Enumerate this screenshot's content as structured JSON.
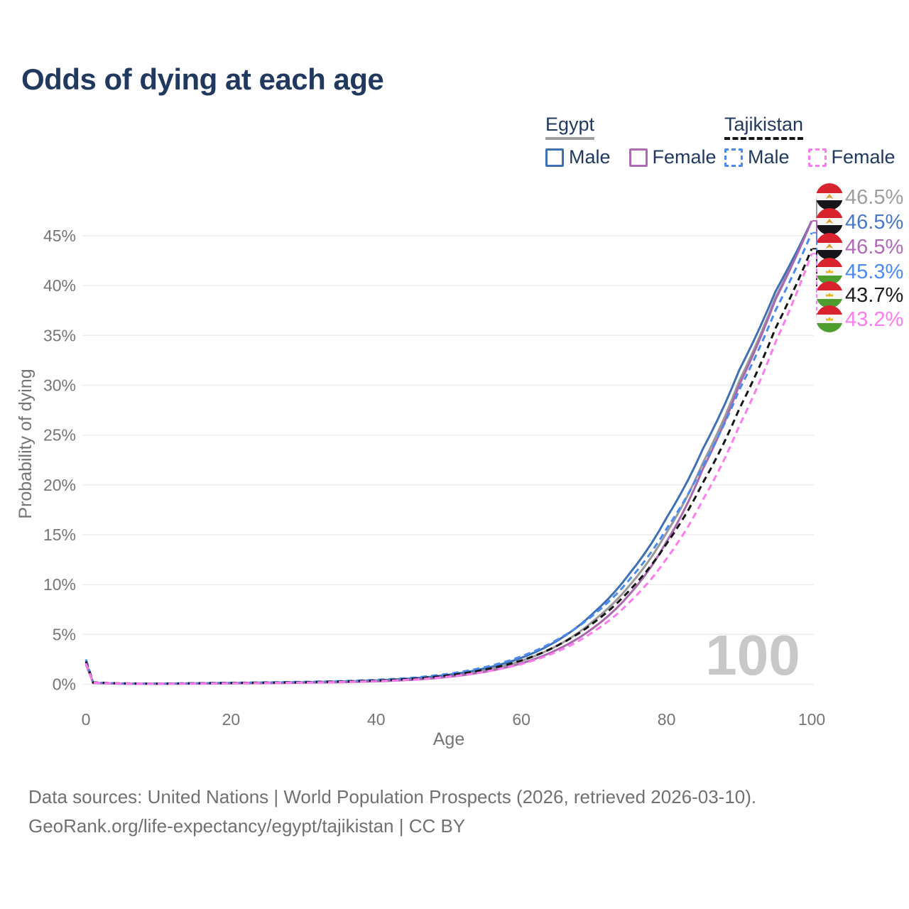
{
  "page": {
    "title": "Odds of dying at each age",
    "watermark": "100"
  },
  "legend": {
    "groups": [
      {
        "label": "Egypt",
        "underline_style": "solid",
        "underline_color": "#9e9e9e",
        "items": [
          {
            "label": "Male",
            "color": "#3f70b5",
            "dashed": false
          },
          {
            "label": "Female",
            "color": "#ad6cb2",
            "dashed": false
          }
        ]
      },
      {
        "label": "Tajikistan",
        "underline_style": "dashed",
        "underline_color": "#161616",
        "items": [
          {
            "label": "Male",
            "color": "#4b8bf0",
            "dashed": true
          },
          {
            "label": "Female",
            "color": "#fb7cef",
            "dashed": true
          }
        ]
      }
    ]
  },
  "chart_data": {
    "type": "line",
    "title": "Odds of dying at each age",
    "xlabel": "Age",
    "ylabel": "Probability of dying",
    "x_ticks": [
      0,
      20,
      40,
      60,
      80,
      100
    ],
    "y_ticks_percent": [
      0,
      5,
      10,
      15,
      20,
      25,
      30,
      35,
      40,
      45
    ],
    "xlim": [
      0,
      100
    ],
    "ylim_percent": [
      0,
      48
    ],
    "grid": "horizontal",
    "legend_position": "top-right",
    "ages": [
      0,
      1,
      5,
      10,
      15,
      20,
      25,
      30,
      35,
      40,
      45,
      50,
      55,
      60,
      65,
      70,
      75,
      80,
      85,
      90,
      95,
      100
    ],
    "series": [
      {
        "id": "egypt-all",
        "name": "Egypt all",
        "flag": "egypt",
        "dashed": false,
        "color": "#9a9a9a",
        "label_color": "#9e9e9e",
        "end_label": "46.5%",
        "values": [
          2.1,
          0.14,
          0.06,
          0.05,
          0.08,
          0.11,
          0.14,
          0.18,
          0.24,
          0.34,
          0.51,
          0.85,
          1.42,
          2.35,
          3.9,
          6.4,
          10.0,
          15.2,
          22.2,
          30.4,
          38.8,
          46.5
        ]
      },
      {
        "id": "egypt-male",
        "name": "Egypt male",
        "flag": "egypt",
        "dashed": false,
        "color": "#3f70b5",
        "label_color": "#4a77c4",
        "end_label": "46.5%",
        "values": [
          2.2,
          0.15,
          0.07,
          0.05,
          0.09,
          0.13,
          0.16,
          0.2,
          0.27,
          0.38,
          0.58,
          0.95,
          1.6,
          2.65,
          4.4,
          7.2,
          11.2,
          16.7,
          23.6,
          31.5,
          39.4,
          46.5
        ]
      },
      {
        "id": "egypt-female",
        "name": "Egypt female",
        "flag": "egypt",
        "dashed": false,
        "color": "#a869ae",
        "label_color": "#b168b8",
        "end_label": "46.5%",
        "values": [
          2.0,
          0.12,
          0.05,
          0.04,
          0.06,
          0.08,
          0.11,
          0.15,
          0.2,
          0.29,
          0.44,
          0.74,
          1.25,
          2.1,
          3.5,
          5.7,
          9.1,
          14.3,
          21.6,
          30.0,
          38.6,
          46.5
        ]
      },
      {
        "id": "tajikistan-male",
        "name": "Tajikistan male",
        "flag": "tajikistan",
        "dashed": true,
        "color": "#4b8bf0",
        "label_color": "#4b8bf0",
        "end_label": "45.3%",
        "values": [
          2.5,
          0.2,
          0.09,
          0.07,
          0.11,
          0.15,
          0.19,
          0.24,
          0.31,
          0.44,
          0.65,
          1.05,
          1.72,
          2.8,
          4.5,
          7.0,
          10.6,
          15.6,
          21.9,
          29.5,
          37.5,
          45.3
        ]
      },
      {
        "id": "tajikistan-all",
        "name": "Tajikistan all",
        "flag": "tajikistan",
        "dashed": true,
        "color": "#161616",
        "label_color": "#1c1c1c",
        "end_label": "43.7%",
        "values": [
          2.3,
          0.18,
          0.08,
          0.06,
          0.1,
          0.13,
          0.16,
          0.2,
          0.27,
          0.37,
          0.55,
          0.9,
          1.48,
          2.38,
          3.9,
          6.2,
          9.5,
          14.1,
          20.2,
          27.6,
          35.7,
          43.7
        ]
      },
      {
        "id": "tajikistan-female",
        "name": "Tajikistan female",
        "flag": "tajikistan",
        "dashed": true,
        "color": "#fb7cef",
        "label_color": "#fb7cef",
        "end_label": "43.2%",
        "values": [
          2.1,
          0.16,
          0.07,
          0.05,
          0.07,
          0.1,
          0.13,
          0.16,
          0.22,
          0.31,
          0.46,
          0.76,
          1.26,
          2.02,
          3.3,
          5.3,
          8.3,
          12.6,
          18.5,
          25.9,
          34.3,
          43.2
        ]
      }
    ]
  },
  "footer": {
    "line1": "Data sources: United Nations | World Population Prospects (2026, retrieved 2026-03-10).",
    "line2": "GeoRank.org/life-expectancy/egypt/tajikistan | CC BY"
  }
}
